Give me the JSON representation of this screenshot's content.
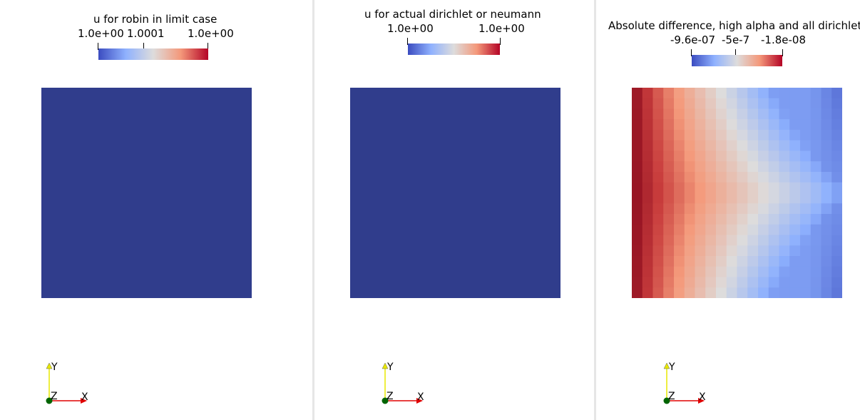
{
  "views": [
    {
      "title": "u for robin in limit case",
      "tick_labels": [
        "1.0e+00",
        "1.0001",
        "1.0e+00"
      ],
      "mesh_color": "#303d8c"
    },
    {
      "title": "u for actual dirichlet or neumann",
      "tick_labels": [
        "1.0e+00",
        "1.0e+00"
      ],
      "mesh_color": "#303d8c"
    },
    {
      "title": "Absolute difference, high alpha and all dirichlet",
      "tick_labels": [
        "-9.6e-07",
        "-5e-7",
        "-1.8e-08"
      ],
      "mesh": "diverging color field, dark red on left edge fading to gray-blue on right"
    }
  ],
  "colormap": [
    "#3b4cc0",
    "#8fb1fe",
    "#dddcdc",
    "#f4987a",
    "#b40426"
  ],
  "orientation_axes": {
    "x_label": "X",
    "y_label": "Y",
    "z_label": "Z",
    "x_color": "#e00000",
    "y_color": "#e8e800",
    "z_color": "#006400"
  }
}
